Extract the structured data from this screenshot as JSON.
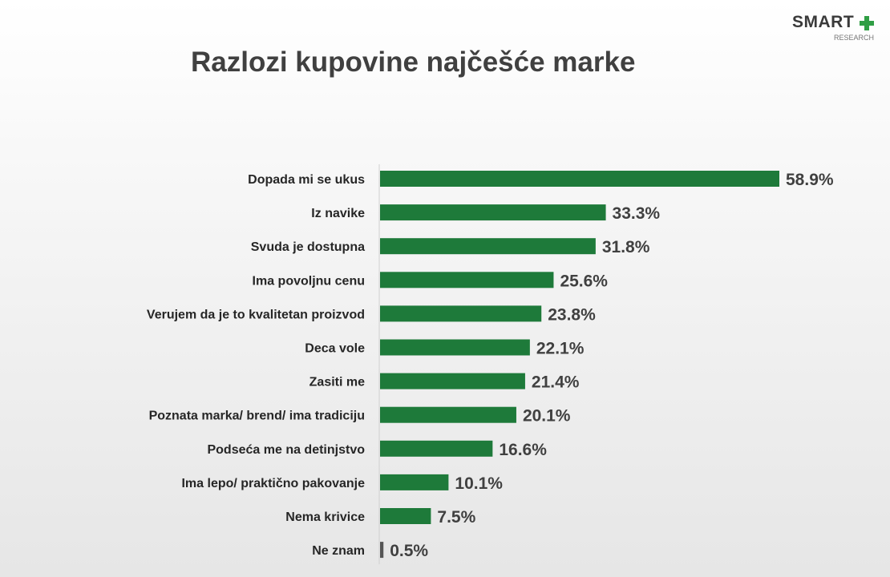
{
  "logo": {
    "word": "SMART",
    "sub": "RESEARCH",
    "plus_color": "#2f9e44"
  },
  "chart_data": {
    "type": "bar",
    "orientation": "horizontal",
    "title": "Razlozi kupovine najčešće marke",
    "xlabel": "",
    "ylabel": "",
    "xlim": [
      0,
      60
    ],
    "grid": false,
    "legend": "none",
    "bar_color": "#1e7a3a",
    "small_bar_color": "#555555",
    "categories": [
      "Dopada mi se ukus",
      "Iz navike",
      "Svuda je dostupna",
      "Ima povoljnu cenu",
      "Verujem da je to kvalitetan proizvod",
      "Deca vole",
      "Zasiti me",
      "Poznata marka/ brend/ ima tradiciju",
      "Podseća me na detinjstvo",
      "Ima lepo/ praktično pakovanje",
      "Nema krivice",
      "Ne znam"
    ],
    "values": [
      58.9,
      33.3,
      31.8,
      25.6,
      23.8,
      22.1,
      21.4,
      20.1,
      16.6,
      10.1,
      7.5,
      0.5
    ],
    "value_labels": [
      "58.9%",
      "33.3%",
      "31.8%",
      "25.6%",
      "23.8%",
      "22.1%",
      "21.4%",
      "20.1%",
      "16.6%",
      "10.1%",
      "7.5%",
      "0.5%"
    ]
  }
}
